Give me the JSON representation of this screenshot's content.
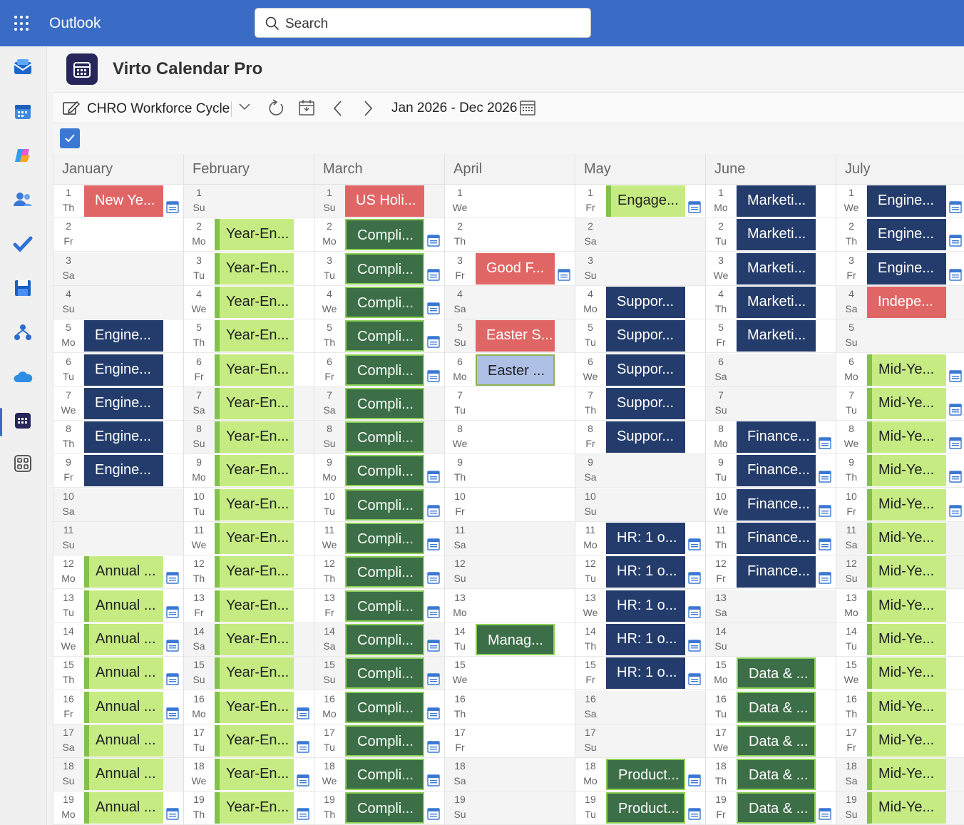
{
  "topbar": {
    "app_name": "Outlook",
    "search_placeholder": "Search"
  },
  "rail": {
    "icons": [
      "mail-icon",
      "calendar-icon",
      "copilot-icon",
      "people-icon",
      "todo-icon",
      "files-icon",
      "org-icon",
      "onedrive-icon",
      "virto-calendar-icon",
      "more-apps-icon"
    ]
  },
  "app": {
    "title": "Virto Calendar Pro"
  },
  "toolbar": {
    "calendar_name": "CHRO Workforce Cycle",
    "range": "Jan 2026 - Dec 2026"
  },
  "colors": {
    "red": "#e06666",
    "navy": "#243c6b",
    "dark_green": "#3c6e47",
    "lime": "#c6eb82",
    "light_blue": "#aec0e6",
    "accent": "#3a6cc5"
  },
  "months": [
    {
      "name": "January",
      "days": [
        {
          "d": "1",
          "w": "Th",
          "e": "New Ye...",
          "c": "red",
          "i": true
        },
        {
          "d": "2",
          "w": "Fr"
        },
        {
          "d": "3",
          "w": "Sa"
        },
        {
          "d": "4",
          "w": "Su"
        },
        {
          "d": "5",
          "w": "Mo",
          "e": "Engine...",
          "c": "navy"
        },
        {
          "d": "6",
          "w": "Tu",
          "e": "Engine...",
          "c": "navy"
        },
        {
          "d": "7",
          "w": "We",
          "e": "Engine...",
          "c": "navy"
        },
        {
          "d": "8",
          "w": "Th",
          "e": "Engine...",
          "c": "navy"
        },
        {
          "d": "9",
          "w": "Fr",
          "e": "Engine...",
          "c": "navy"
        },
        {
          "d": "10",
          "w": "Sa"
        },
        {
          "d": "11",
          "w": "Su"
        },
        {
          "d": "12",
          "w": "Mo",
          "e": "Annual ...",
          "c": "lime2",
          "i": true
        },
        {
          "d": "13",
          "w": "Tu",
          "e": "Annual ...",
          "c": "lime2",
          "i": true
        },
        {
          "d": "14",
          "w": "We",
          "e": "Annual ...",
          "c": "lime2",
          "i": true
        },
        {
          "d": "15",
          "w": "Th",
          "e": "Annual ...",
          "c": "lime2",
          "i": true
        },
        {
          "d": "16",
          "w": "Fr",
          "e": "Annual ...",
          "c": "lime2",
          "i": true
        },
        {
          "d": "17",
          "w": "Sa",
          "e": "Annual ...",
          "c": "lime2"
        },
        {
          "d": "18",
          "w": "Su",
          "e": "Annual ...",
          "c": "lime2"
        },
        {
          "d": "19",
          "w": "Mo",
          "e": "Annual ...",
          "c": "lime2",
          "i": true
        }
      ]
    },
    {
      "name": "February",
      "days": [
        {
          "d": "1",
          "w": "Su"
        },
        {
          "d": "2",
          "w": "Mo",
          "e": "Year-En...",
          "c": "lime2"
        },
        {
          "d": "3",
          "w": "Tu",
          "e": "Year-En...",
          "c": "lime2"
        },
        {
          "d": "4",
          "w": "We",
          "e": "Year-En...",
          "c": "lime2"
        },
        {
          "d": "5",
          "w": "Th",
          "e": "Year-En...",
          "c": "lime2"
        },
        {
          "d": "6",
          "w": "Fr",
          "e": "Year-En...",
          "c": "lime2"
        },
        {
          "d": "7",
          "w": "Sa",
          "e": "Year-En...",
          "c": "lime2"
        },
        {
          "d": "8",
          "w": "Su",
          "e": "Year-En...",
          "c": "lime2"
        },
        {
          "d": "9",
          "w": "Mo",
          "e": "Year-En...",
          "c": "lime2"
        },
        {
          "d": "10",
          "w": "Tu",
          "e": "Year-En...",
          "c": "lime2"
        },
        {
          "d": "11",
          "w": "We",
          "e": "Year-En...",
          "c": "lime2"
        },
        {
          "d": "12",
          "w": "Th",
          "e": "Year-En...",
          "c": "lime2"
        },
        {
          "d": "13",
          "w": "Fr",
          "e": "Year-En...",
          "c": "lime2"
        },
        {
          "d": "14",
          "w": "Sa",
          "e": "Year-En...",
          "c": "lime2"
        },
        {
          "d": "15",
          "w": "Su",
          "e": "Year-En...",
          "c": "lime2"
        },
        {
          "d": "16",
          "w": "Mo",
          "e": "Year-En...",
          "c": "lime2",
          "i": true
        },
        {
          "d": "17",
          "w": "Tu",
          "e": "Year-En...",
          "c": "lime2",
          "i": true
        },
        {
          "d": "18",
          "w": "We",
          "e": "Year-En...",
          "c": "lime2",
          "i": true
        },
        {
          "d": "19",
          "w": "Th",
          "e": "Year-En...",
          "c": "lime2",
          "i": true
        }
      ]
    },
    {
      "name": "March",
      "days": [
        {
          "d": "1",
          "w": "Su",
          "e": "US Holi...",
          "c": "red"
        },
        {
          "d": "2",
          "w": "Mo",
          "e": "Compli...",
          "c": "green",
          "i": true
        },
        {
          "d": "3",
          "w": "Tu",
          "e": "Compli...",
          "c": "green",
          "i": true
        },
        {
          "d": "4",
          "w": "We",
          "e": "Compli...",
          "c": "green",
          "i": true
        },
        {
          "d": "5",
          "w": "Th",
          "e": "Compli...",
          "c": "green",
          "i": true
        },
        {
          "d": "6",
          "w": "Fr",
          "e": "Compli...",
          "c": "green",
          "i": true
        },
        {
          "d": "7",
          "w": "Sa",
          "e": "Compli...",
          "c": "green"
        },
        {
          "d": "8",
          "w": "Su",
          "e": "Compli...",
          "c": "green"
        },
        {
          "d": "9",
          "w": "Mo",
          "e": "Compli...",
          "c": "green",
          "i": true
        },
        {
          "d": "10",
          "w": "Tu",
          "e": "Compli...",
          "c": "green",
          "i": true
        },
        {
          "d": "11",
          "w": "We",
          "e": "Compli...",
          "c": "green",
          "i": true
        },
        {
          "d": "12",
          "w": "Th",
          "e": "Compli...",
          "c": "green",
          "i": true
        },
        {
          "d": "13",
          "w": "Fr",
          "e": "Compli...",
          "c": "green",
          "i": true
        },
        {
          "d": "14",
          "w": "Sa",
          "e": "Compli...",
          "c": "green",
          "i": true
        },
        {
          "d": "15",
          "w": "Su",
          "e": "Compli...",
          "c": "green",
          "i": true
        },
        {
          "d": "16",
          "w": "Mo",
          "e": "Compli...",
          "c": "green",
          "i": true
        },
        {
          "d": "17",
          "w": "Tu",
          "e": "Compli...",
          "c": "green",
          "i": true
        },
        {
          "d": "18",
          "w": "We",
          "e": "Compli...",
          "c": "green",
          "i": true
        },
        {
          "d": "19",
          "w": "Th",
          "e": "Compli...",
          "c": "green",
          "i": true
        }
      ]
    },
    {
      "name": "April",
      "days": [
        {
          "d": "1",
          "w": "We"
        },
        {
          "d": "2",
          "w": "Th"
        },
        {
          "d": "3",
          "w": "Fr",
          "e": "Good F...",
          "c": "red",
          "i": true
        },
        {
          "d": "4",
          "w": "Sa"
        },
        {
          "d": "5",
          "w": "Su",
          "e": "Easter S...",
          "c": "red"
        },
        {
          "d": "6",
          "w": "Mo",
          "e": "Easter ...",
          "c": "lblue"
        },
        {
          "d": "7",
          "w": "Tu"
        },
        {
          "d": "8",
          "w": "We"
        },
        {
          "d": "9",
          "w": "Th"
        },
        {
          "d": "10",
          "w": "Fr"
        },
        {
          "d": "11",
          "w": "Sa"
        },
        {
          "d": "12",
          "w": "Su"
        },
        {
          "d": "13",
          "w": "Mo"
        },
        {
          "d": "14",
          "w": "Tu",
          "e": "Manag...",
          "c": "green"
        },
        {
          "d": "15",
          "w": "We"
        },
        {
          "d": "16",
          "w": "Th"
        },
        {
          "d": "17",
          "w": "Fr"
        },
        {
          "d": "18",
          "w": "Sa"
        },
        {
          "d": "19",
          "w": "Su"
        }
      ]
    },
    {
      "name": "May",
      "days": [
        {
          "d": "1",
          "w": "Fr",
          "e": "Engage...",
          "c": "lime2",
          "i": true
        },
        {
          "d": "2",
          "w": "Sa"
        },
        {
          "d": "3",
          "w": "Su"
        },
        {
          "d": "4",
          "w": "Mo",
          "e": "Suppor...",
          "c": "navy"
        },
        {
          "d": "5",
          "w": "Tu",
          "e": "Suppor...",
          "c": "navy"
        },
        {
          "d": "6",
          "w": "We",
          "e": "Suppor...",
          "c": "navy"
        },
        {
          "d": "7",
          "w": "Th",
          "e": "Suppor...",
          "c": "navy"
        },
        {
          "d": "8",
          "w": "Fr",
          "e": "Suppor...",
          "c": "navy"
        },
        {
          "d": "9",
          "w": "Sa"
        },
        {
          "d": "10",
          "w": "Su"
        },
        {
          "d": "11",
          "w": "Mo",
          "e": "HR: 1 o...",
          "c": "navy",
          "i": true
        },
        {
          "d": "12",
          "w": "Tu",
          "e": "HR: 1 o...",
          "c": "navy",
          "i": true
        },
        {
          "d": "13",
          "w": "We",
          "e": "HR: 1 o...",
          "c": "navy",
          "i": true
        },
        {
          "d": "14",
          "w": "Th",
          "e": "HR: 1 o...",
          "c": "navy",
          "i": true
        },
        {
          "d": "15",
          "w": "Fr",
          "e": "HR: 1 o...",
          "c": "navy",
          "i": true
        },
        {
          "d": "16",
          "w": "Sa"
        },
        {
          "d": "17",
          "w": "Su"
        },
        {
          "d": "18",
          "w": "Mo",
          "e": "Product...",
          "c": "green",
          "i": true
        },
        {
          "d": "19",
          "w": "Tu",
          "e": "Product...",
          "c": "green",
          "i": true
        }
      ]
    },
    {
      "name": "June",
      "days": [
        {
          "d": "1",
          "w": "Mo",
          "e": "Marketi...",
          "c": "navy"
        },
        {
          "d": "2",
          "w": "Tu",
          "e": "Marketi...",
          "c": "navy"
        },
        {
          "d": "3",
          "w": "We",
          "e": "Marketi...",
          "c": "navy"
        },
        {
          "d": "4",
          "w": "Th",
          "e": "Marketi...",
          "c": "navy"
        },
        {
          "d": "5",
          "w": "Fr",
          "e": "Marketi...",
          "c": "navy"
        },
        {
          "d": "6",
          "w": "Sa"
        },
        {
          "d": "7",
          "w": "Su"
        },
        {
          "d": "8",
          "w": "Mo",
          "e": "Finance...",
          "c": "navy",
          "i": true
        },
        {
          "d": "9",
          "w": "Tu",
          "e": "Finance...",
          "c": "navy",
          "i": true
        },
        {
          "d": "10",
          "w": "We",
          "e": "Finance...",
          "c": "navy",
          "i": true
        },
        {
          "d": "11",
          "w": "Th",
          "e": "Finance...",
          "c": "navy",
          "i": true
        },
        {
          "d": "12",
          "w": "Fr",
          "e": "Finance...",
          "c": "navy",
          "i": true
        },
        {
          "d": "13",
          "w": "Sa"
        },
        {
          "d": "14",
          "w": "Su"
        },
        {
          "d": "15",
          "w": "Mo",
          "e": "Data & ...",
          "c": "green"
        },
        {
          "d": "16",
          "w": "Tu",
          "e": "Data & ...",
          "c": "green"
        },
        {
          "d": "17",
          "w": "We",
          "e": "Data & ...",
          "c": "green"
        },
        {
          "d": "18",
          "w": "Th",
          "e": "Data & ...",
          "c": "green"
        },
        {
          "d": "19",
          "w": "Fr",
          "e": "Data & ...",
          "c": "green",
          "i": true
        }
      ]
    },
    {
      "name": "July",
      "days": [
        {
          "d": "1",
          "w": "We",
          "e": "Engine...",
          "c": "navy",
          "i": true
        },
        {
          "d": "2",
          "w": "Th",
          "e": "Engine...",
          "c": "navy",
          "i": true
        },
        {
          "d": "3",
          "w": "Fr",
          "e": "Engine...",
          "c": "navy",
          "i": true
        },
        {
          "d": "4",
          "w": "Sa",
          "e": "Indepe...",
          "c": "red"
        },
        {
          "d": "5",
          "w": "Su"
        },
        {
          "d": "6",
          "w": "Mo",
          "e": "Mid-Ye...",
          "c": "lime2",
          "i": true
        },
        {
          "d": "7",
          "w": "Tu",
          "e": "Mid-Ye...",
          "c": "lime2",
          "i": true
        },
        {
          "d": "8",
          "w": "We",
          "e": "Mid-Ye...",
          "c": "lime2",
          "i": true
        },
        {
          "d": "9",
          "w": "Th",
          "e": "Mid-Ye...",
          "c": "lime2",
          "i": true
        },
        {
          "d": "10",
          "w": "Fr",
          "e": "Mid-Ye...",
          "c": "lime2",
          "i": true
        },
        {
          "d": "11",
          "w": "Sa",
          "e": "Mid-Ye...",
          "c": "lime2"
        },
        {
          "d": "12",
          "w": "Su",
          "e": "Mid-Ye...",
          "c": "lime2"
        },
        {
          "d": "13",
          "w": "Mo",
          "e": "Mid-Ye...",
          "c": "lime2"
        },
        {
          "d": "14",
          "w": "Tu",
          "e": "Mid-Ye...",
          "c": "lime2"
        },
        {
          "d": "15",
          "w": "We",
          "e": "Mid-Ye...",
          "c": "lime2"
        },
        {
          "d": "16",
          "w": "Th",
          "e": "Mid-Ye...",
          "c": "lime2"
        },
        {
          "d": "17",
          "w": "Fr",
          "e": "Mid-Ye...",
          "c": "lime2"
        },
        {
          "d": "18",
          "w": "Sa",
          "e": "Mid-Ye...",
          "c": "lime2"
        },
        {
          "d": "19",
          "w": "Su",
          "e": "Mid-Ye...",
          "c": "lime2"
        }
      ]
    }
  ]
}
